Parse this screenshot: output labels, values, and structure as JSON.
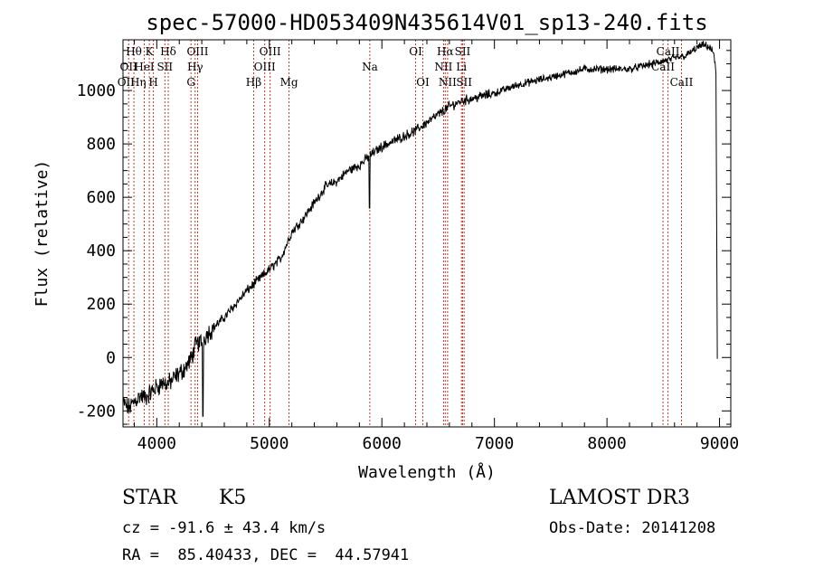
{
  "chart_data": {
    "type": "line",
    "title": "spec-57000-HD053409N435614V01_sp13-240.fits",
    "xlabel": "Wavelength (Å)",
    "ylabel": "Flux (relative)",
    "xlim": [
      3700,
      9100
    ],
    "ylim": [
      -260,
      1190
    ],
    "xticks": [
      4000,
      5000,
      6000,
      7000,
      8000,
      9000
    ],
    "yticks": [
      -200,
      0,
      200,
      400,
      600,
      800,
      1000
    ],
    "grid": false,
    "series": [
      {
        "name": "flux",
        "x": [
          3700,
          3750,
          3800,
          3850,
          3900,
          3950,
          4000,
          4050,
          4100,
          4150,
          4200,
          4250,
          4300,
          4350,
          4400,
          4450,
          4500,
          4600,
          4700,
          4800,
          4900,
          5000,
          5100,
          5200,
          5300,
          5400,
          5500,
          5600,
          5700,
          5800,
          5900,
          6000,
          6100,
          6200,
          6300,
          6400,
          6500,
          6600,
          6700,
          6800,
          6900,
          7000,
          7200,
          7400,
          7600,
          7800,
          8000,
          8200,
          8400,
          8500,
          8600,
          8700,
          8800,
          8850,
          8900,
          8950,
          8970,
          8980
        ],
        "y": [
          -170,
          -190,
          -165,
          -145,
          -150,
          -130,
          -110,
          -95,
          -100,
          -80,
          -60,
          -40,
          -10,
          50,
          60,
          90,
          110,
          150,
          200,
          250,
          290,
          330,
          370,
          470,
          520,
          580,
          640,
          660,
          700,
          720,
          760,
          790,
          810,
          830,
          850,
          880,
          910,
          940,
          960,
          970,
          980,
          990,
          1020,
          1040,
          1060,
          1080,
          1080,
          1080,
          1100,
          1110,
          1120,
          1130,
          1160,
          1170,
          1165,
          1140,
          1050,
          -5
        ]
      }
    ],
    "absorption_dips": [
      {
        "x": 4410,
        "y": -220
      },
      {
        "x": 5890,
        "y": 560
      }
    ],
    "lines": [
      {
        "x": 3750,
        "labels": [
          "OII"
        ]
      },
      {
        "x": 3797,
        "labels": [
          "Hθ"
        ]
      },
      {
        "x": 3889,
        "labels": [
          "HeI"
        ]
      },
      {
        "x": 3934,
        "labels": [
          "K"
        ]
      },
      {
        "x": 3970,
        "labels": [
          "H"
        ]
      },
      {
        "x": 4072,
        "labels": [
          "SII"
        ]
      },
      {
        "x": 4102,
        "labels": [
          "Hδ"
        ]
      },
      {
        "x": 4304,
        "labels": [
          "G"
        ]
      },
      {
        "x": 4341,
        "labels": [
          "Hγ"
        ]
      },
      {
        "x": 4363,
        "labels": [
          "OIII"
        ]
      },
      {
        "x": 4861,
        "labels": [
          "Hβ"
        ]
      },
      {
        "x": 4959,
        "labels": [
          "OIII"
        ]
      },
      {
        "x": 5007,
        "labels": [
          "OIII"
        ]
      },
      {
        "x": 5175,
        "labels": [
          "Mg"
        ]
      },
      {
        "x": 5893,
        "labels": [
          "Na"
        ]
      },
      {
        "x": 6300,
        "labels": [
          "OI"
        ]
      },
      {
        "x": 6364,
        "labels": [
          "OI"
        ]
      },
      {
        "x": 6548,
        "labels": [
          "NII"
        ]
      },
      {
        "x": 6563,
        "labels": [
          "Hα"
        ]
      },
      {
        "x": 6584,
        "labels": [
          "NII"
        ]
      },
      {
        "x": 6707,
        "labels": [
          "Li"
        ]
      },
      {
        "x": 6717,
        "labels": [
          "SII"
        ]
      },
      {
        "x": 6731,
        "labels": [
          "SII"
        ]
      },
      {
        "x": 8498,
        "labels": [
          "CaII"
        ]
      },
      {
        "x": 8542,
        "labels": [
          "CaII"
        ]
      },
      {
        "x": 8662,
        "labels": [
          "CaII"
        ]
      }
    ],
    "label_texts": {
      "htheta": "Hθ",
      "k": "K",
      "hdelta": "Hδ",
      "oiii_a": "OIII",
      "oiii_b": "OIII",
      "oi_a": "OI",
      "halpha": "Hα",
      "sii_a": "SII",
      "caii_a": "CaII",
      "oii": "OII",
      "hei": "HeI",
      "sii_b": "SII",
      "hgamma": "Hγ",
      "oiii_c": "OIII",
      "na": "Na",
      "nii_a": "NII",
      "li": "Li",
      "caii_b": "CaII",
      "oiii_d": "OII",
      "heta": "Hη",
      "h": "H",
      "g": "G",
      "hbeta": "Hβ",
      "mg": "Mg",
      "oi_b": "OI",
      "nii_b": "NII",
      "sii_c": "SII",
      "caii_c": "CaII"
    }
  },
  "info": {
    "object_class": "STAR",
    "subclass": "K5",
    "survey": "LAMOST DR3",
    "cz": "cz = -91.6 ± 43.4 km/s",
    "obs_date": "Obs-Date: 20141208",
    "coords": "RA =  85.40433, DEC =  44.57941"
  },
  "colors": {
    "line_marker": "#c0392b",
    "spectrum": "#000000"
  }
}
